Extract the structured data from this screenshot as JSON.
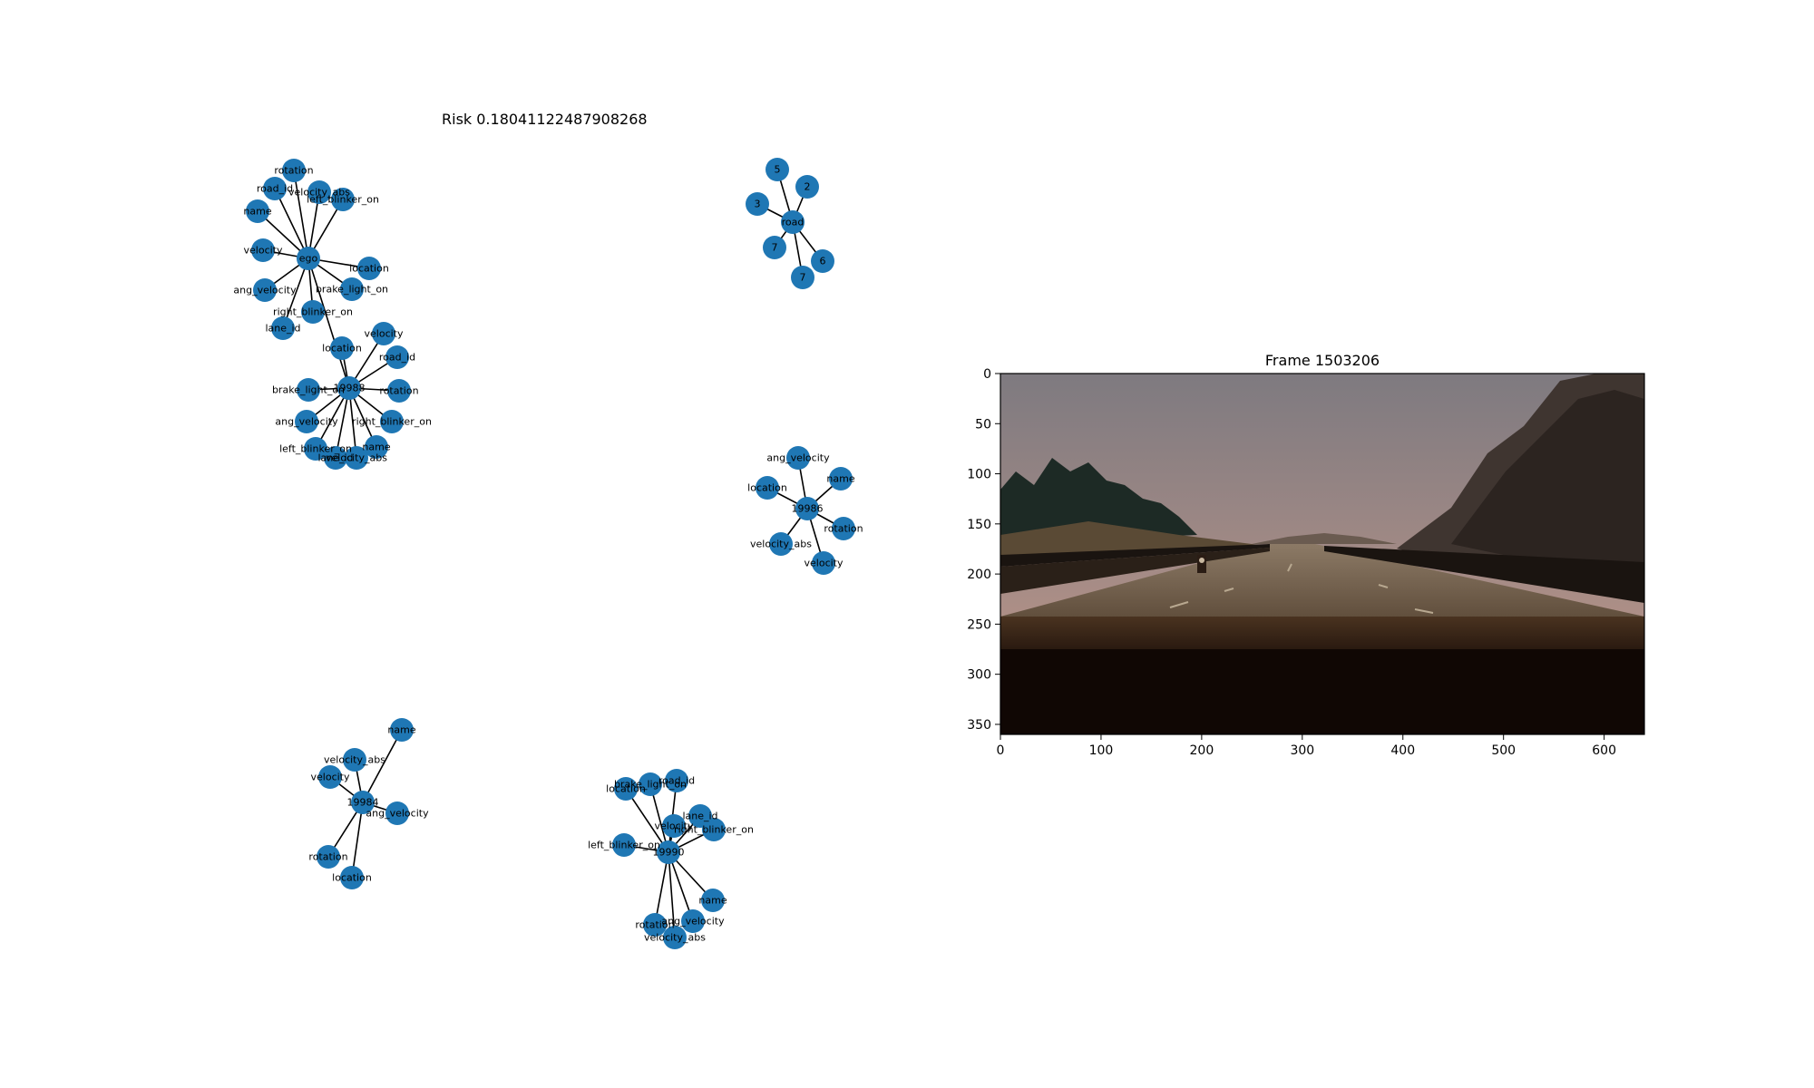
{
  "risk_title": "Risk 0.18041122487908268",
  "frame_title": "Frame 1503206",
  "image_axes": {
    "x_ticks": [
      "0",
      "100",
      "200",
      "300",
      "400",
      "500",
      "600"
    ],
    "y_ticks": [
      "0",
      "50",
      "100",
      "150",
      "200",
      "250",
      "300",
      "350"
    ]
  },
  "graphs": [
    {
      "id": "ego-cluster",
      "center": "ego",
      "leaves": [
        "rotation",
        "road_id",
        "velocity_abs",
        "left_blinker_on",
        "name",
        "velocity",
        "location",
        "ang_velocity",
        "brake_light_on",
        "right_blinker_on",
        "lane_id"
      ],
      "link": {
        "from": "location",
        "to": "19988"
      }
    },
    {
      "id": "vehicle-19988",
      "center": "19988",
      "leaves": [
        "location",
        "velocity",
        "road_id",
        "brake_light_on",
        "rotation",
        "ang_velocity",
        "right_blinker_on",
        "left_blinker_on",
        "name",
        "lane_id",
        "velocity_abs"
      ]
    },
    {
      "id": "road-cluster",
      "center": "road",
      "leaves": [
        "5",
        "2",
        "3",
        "7",
        "6",
        "7"
      ]
    },
    {
      "id": "vehicle-19986",
      "center": "19986",
      "leaves": [
        "ang_velocity",
        "name",
        "location",
        "rotation",
        "velocity_abs",
        "velocity"
      ]
    },
    {
      "id": "vehicle-19984",
      "center": "19984",
      "leaves": [
        "name",
        "velocity_abs",
        "velocity",
        "ang_velocity",
        "rotation",
        "location"
      ]
    },
    {
      "id": "vehicle-19990",
      "center": "19990",
      "leaves": [
        "brake_light_on",
        "road_id",
        "location",
        "lane_id",
        "velocity",
        "right_blinker_on",
        "left_blinker_on",
        "name",
        "ang_velocity",
        "rotation",
        "velocity_abs"
      ]
    }
  ],
  "colors": {
    "node": "#1f77b4",
    "edge": "#000000",
    "sky_top": "#8a8487",
    "sky_bottom": "#c09585",
    "road": "#6b5a48",
    "dark": "#120805"
  }
}
